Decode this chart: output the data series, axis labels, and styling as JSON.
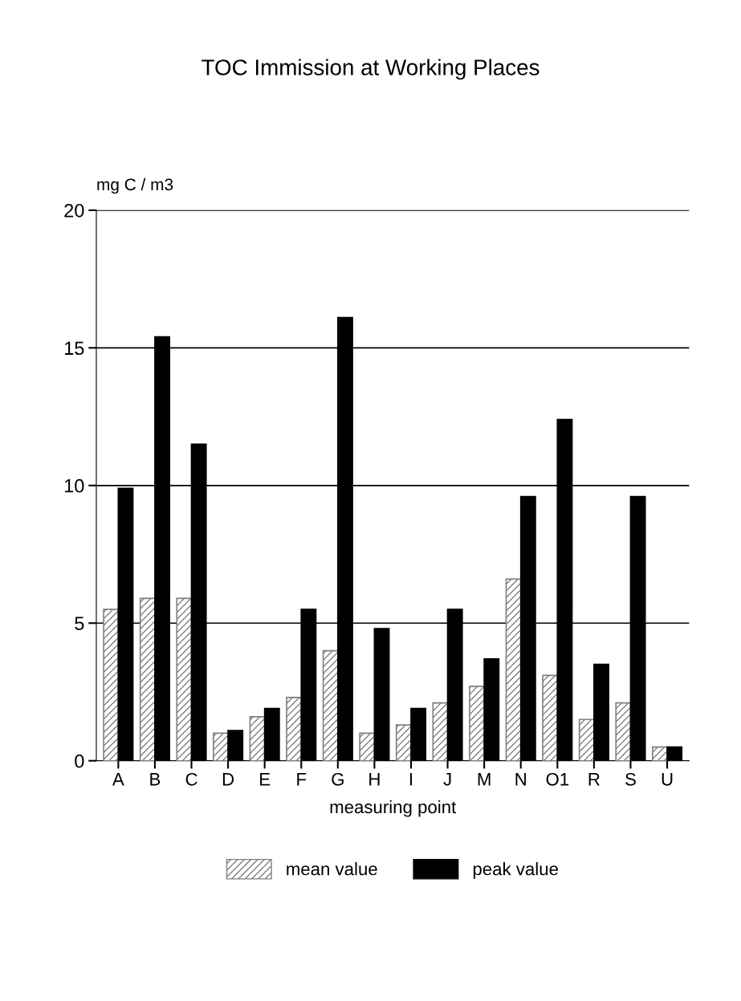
{
  "chart_data": {
    "type": "bar",
    "title": "TOC Immission at Working Places",
    "ylabel": "mg C / m3",
    "xlabel": "measuring point",
    "categories": [
      "A",
      "B",
      "C",
      "D",
      "E",
      "F",
      "G",
      "H",
      "I",
      "J",
      "M",
      "N",
      "O1",
      "R",
      "S",
      "U"
    ],
    "series": [
      {
        "name": "mean value",
        "color": "#808080",
        "values": [
          5.5,
          5.9,
          5.9,
          1.0,
          1.6,
          2.3,
          4.0,
          1.0,
          1.3,
          2.1,
          2.7,
          6.6,
          3.1,
          1.5,
          2.1,
          0.5
        ]
      },
      {
        "name": "peak value",
        "color": "#000000",
        "values": [
          9.9,
          15.4,
          11.5,
          1.1,
          1.9,
          5.5,
          16.1,
          4.8,
          1.9,
          5.5,
          3.7,
          9.6,
          12.4,
          3.5,
          9.6,
          0.5
        ]
      }
    ],
    "ylim": [
      0,
      20
    ],
    "yticks": [
      0,
      5,
      10,
      15,
      20
    ],
    "grid": "y",
    "legend": "bottom"
  }
}
